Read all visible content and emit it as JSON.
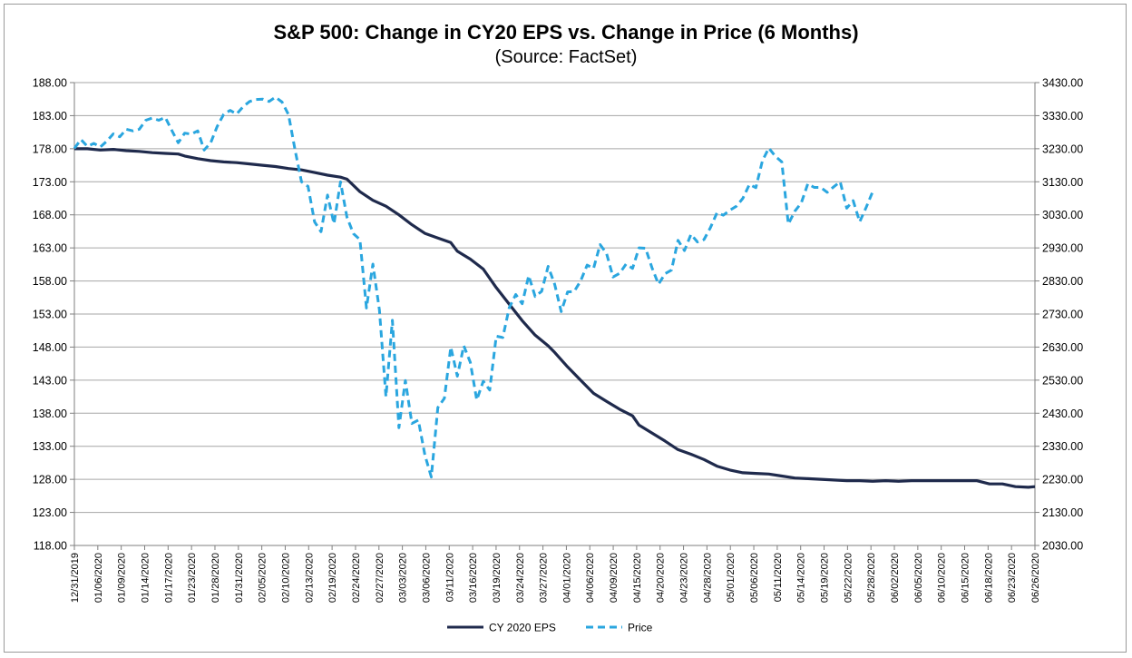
{
  "chart_data": {
    "type": "line",
    "title": "S&P 500: Change in CY20 EPS vs. Change in Price (6 Months)",
    "subtitle": "(Source: FactSet)",
    "x_tick_labels": [
      "12/31/2019",
      "01/06/2020",
      "01/09/2020",
      "01/14/2020",
      "01/17/2020",
      "01/23/2020",
      "01/28/2020",
      "01/31/2020",
      "02/05/2020",
      "02/10/2020",
      "02/13/2020",
      "02/19/2020",
      "02/24/2020",
      "02/27/2020",
      "03/03/2020",
      "03/06/2020",
      "03/11/2020",
      "03/16/2020",
      "03/19/2020",
      "03/24/2020",
      "03/27/2020",
      "04/01/2020",
      "04/06/2020",
      "04/09/2020",
      "04/15/2020",
      "04/20/2020",
      "04/23/2020",
      "04/28/2020",
      "05/01/2020",
      "05/06/2020",
      "05/11/2020",
      "05/14/2020",
      "05/19/2020",
      "05/22/2020",
      "05/28/2020",
      "06/02/2020",
      "06/05/2020",
      "06/10/2020",
      "06/15/2020",
      "06/18/2020",
      "06/23/2020",
      "06/26/2020"
    ],
    "y_left": {
      "min": 118,
      "max": 188,
      "step": 5,
      "decimals": 2
    },
    "y_right": {
      "min": 2030,
      "max": 3430,
      "step": 100,
      "decimals": 2
    },
    "grid": true,
    "legend_position": "bottom",
    "series": [
      {
        "name": "CY 2020 EPS",
        "axis": "left",
        "color": "#1f2a4c",
        "style": "solid",
        "values": [
          [
            0,
            178.0
          ],
          [
            2,
            178.0
          ],
          [
            4,
            177.8
          ],
          [
            6,
            177.9
          ],
          [
            8,
            177.7
          ],
          [
            10,
            177.6
          ],
          [
            12,
            177.4
          ],
          [
            14,
            177.3
          ],
          [
            16,
            177.2
          ],
          [
            17,
            176.9
          ],
          [
            19,
            176.5
          ],
          [
            21,
            176.2
          ],
          [
            23,
            176.0
          ],
          [
            25,
            175.9
          ],
          [
            27,
            175.7
          ],
          [
            29,
            175.5
          ],
          [
            31,
            175.3
          ],
          [
            33,
            175.0
          ],
          [
            35,
            174.8
          ],
          [
            37,
            174.4
          ],
          [
            39,
            174.0
          ],
          [
            41,
            173.7
          ],
          [
            42,
            173.4
          ],
          [
            44,
            171.5
          ],
          [
            46,
            170.2
          ],
          [
            48,
            169.3
          ],
          [
            50,
            168.0
          ],
          [
            52,
            166.5
          ],
          [
            54,
            165.2
          ],
          [
            56,
            164.5
          ],
          [
            58,
            163.8
          ],
          [
            59,
            162.5
          ],
          [
            61,
            161.3
          ],
          [
            63,
            159.8
          ],
          [
            65,
            157.0
          ],
          [
            67,
            154.5
          ],
          [
            69,
            152.0
          ],
          [
            71,
            149.8
          ],
          [
            73,
            148.2
          ],
          [
            74,
            147.2
          ],
          [
            76,
            145.0
          ],
          [
            78,
            143.0
          ],
          [
            80,
            141.0
          ],
          [
            82,
            139.8
          ],
          [
            84,
            138.6
          ],
          [
            86,
            137.6
          ],
          [
            87,
            136.2
          ],
          [
            89,
            135.0
          ],
          [
            91,
            133.8
          ],
          [
            93,
            132.5
          ],
          [
            95,
            131.8
          ],
          [
            97,
            131.0
          ],
          [
            99,
            130.0
          ],
          [
            101,
            129.4
          ],
          [
            103,
            129.0
          ],
          [
            105,
            128.9
          ],
          [
            107,
            128.8
          ],
          [
            109,
            128.5
          ],
          [
            111,
            128.2
          ],
          [
            113,
            128.1
          ],
          [
            115,
            128.0
          ],
          [
            117,
            127.9
          ],
          [
            119,
            127.8
          ],
          [
            121,
            127.8
          ],
          [
            123,
            127.7
          ],
          [
            125,
            127.8
          ],
          [
            127,
            127.7
          ],
          [
            129,
            127.8
          ],
          [
            131,
            127.8
          ],
          [
            133,
            127.8
          ],
          [
            135,
            127.8
          ],
          [
            137,
            127.8
          ],
          [
            139,
            127.8
          ],
          [
            141,
            127.3
          ],
          [
            143,
            127.3
          ],
          [
            145,
            126.9
          ],
          [
            147,
            126.8
          ],
          [
            148,
            126.9
          ]
        ]
      },
      {
        "name": "Price",
        "axis": "right",
        "color": "#2aa6df",
        "style": "dashed",
        "values": [
          [
            0,
            3231
          ],
          [
            1,
            3258
          ],
          [
            2,
            3237
          ],
          [
            3,
            3246
          ],
          [
            4,
            3235
          ],
          [
            5,
            3253
          ],
          [
            6,
            3275
          ],
          [
            7,
            3266
          ],
          [
            8,
            3289
          ],
          [
            9,
            3284
          ],
          [
            10,
            3289
          ],
          [
            11,
            3316
          ],
          [
            12,
            3323
          ],
          [
            13,
            3316
          ],
          [
            14,
            3325
          ],
          [
            15,
            3286
          ],
          [
            16,
            3248
          ],
          [
            17,
            3277
          ],
          [
            18,
            3274
          ],
          [
            19,
            3284
          ],
          [
            20,
            3226
          ],
          [
            21,
            3248
          ],
          [
            22,
            3297
          ],
          [
            23,
            3334
          ],
          [
            24,
            3346
          ],
          [
            25,
            3335
          ],
          [
            26,
            3357
          ],
          [
            27,
            3373
          ],
          [
            28,
            3379
          ],
          [
            29,
            3380
          ],
          [
            30,
            3373
          ],
          [
            31,
            3386
          ],
          [
            32,
            3371
          ],
          [
            33,
            3333
          ],
          [
            34,
            3226
          ],
          [
            35,
            3130
          ],
          [
            36,
            3116
          ],
          [
            37,
            3009
          ],
          [
            38,
            2979
          ],
          [
            39,
            3090
          ],
          [
            40,
            3003
          ],
          [
            41,
            3130
          ],
          [
            42,
            3023
          ],
          [
            43,
            2973
          ],
          [
            44,
            2955
          ],
          [
            45,
            2748
          ],
          [
            46,
            2881
          ],
          [
            47,
            2742
          ],
          [
            48,
            2480
          ],
          [
            49,
            2711
          ],
          [
            50,
            2386
          ],
          [
            51,
            2529
          ],
          [
            52,
            2399
          ],
          [
            53,
            2409
          ],
          [
            54,
            2304
          ],
          [
            55,
            2237
          ],
          [
            56,
            2447
          ],
          [
            57,
            2475
          ],
          [
            58,
            2630
          ],
          [
            59,
            2542
          ],
          [
            60,
            2634
          ],
          [
            61,
            2584
          ],
          [
            62,
            2470
          ],
          [
            63,
            2527
          ],
          [
            64,
            2500
          ],
          [
            65,
            2663
          ],
          [
            66,
            2659
          ],
          [
            67,
            2749
          ],
          [
            68,
            2789
          ],
          [
            69,
            2761
          ],
          [
            70,
            2846
          ],
          [
            71,
            2783
          ],
          [
            72,
            2799
          ],
          [
            73,
            2874
          ],
          [
            74,
            2820
          ],
          [
            75,
            2737
          ],
          [
            76,
            2797
          ],
          [
            77,
            2798
          ],
          [
            78,
            2830
          ],
          [
            79,
            2878
          ],
          [
            80,
            2868
          ],
          [
            81,
            2940
          ],
          [
            82,
            2913
          ],
          [
            83,
            2842
          ],
          [
            84,
            2853
          ],
          [
            85,
            2881
          ],
          [
            86,
            2868
          ],
          [
            87,
            2930
          ],
          [
            88,
            2929
          ],
          [
            89,
            2870
          ],
          [
            90,
            2820
          ],
          [
            91,
            2852
          ],
          [
            92,
            2863
          ],
          [
            93,
            2953
          ],
          [
            94,
            2922
          ],
          [
            95,
            2971
          ],
          [
            96,
            2948
          ],
          [
            97,
            2955
          ],
          [
            98,
            2991
          ],
          [
            99,
            3036
          ],
          [
            100,
            3029
          ],
          [
            101,
            3044
          ],
          [
            102,
            3056
          ],
          [
            103,
            3080
          ],
          [
            104,
            3122
          ],
          [
            105,
            3112
          ],
          [
            106,
            3193
          ],
          [
            107,
            3232
          ],
          [
            108,
            3207
          ],
          [
            109,
            3190
          ],
          [
            110,
            3002
          ],
          [
            111,
            3041
          ],
          [
            112,
            3066
          ],
          [
            113,
            3124
          ],
          [
            114,
            3113
          ],
          [
            115,
            3113
          ],
          [
            116,
            3098
          ],
          [
            117,
            3115
          ],
          [
            118,
            3130
          ],
          [
            119,
            3050
          ],
          [
            120,
            3073
          ],
          [
            121,
            3009
          ],
          [
            122,
            3053
          ],
          [
            123,
            3100
          ]
        ]
      }
    ]
  }
}
